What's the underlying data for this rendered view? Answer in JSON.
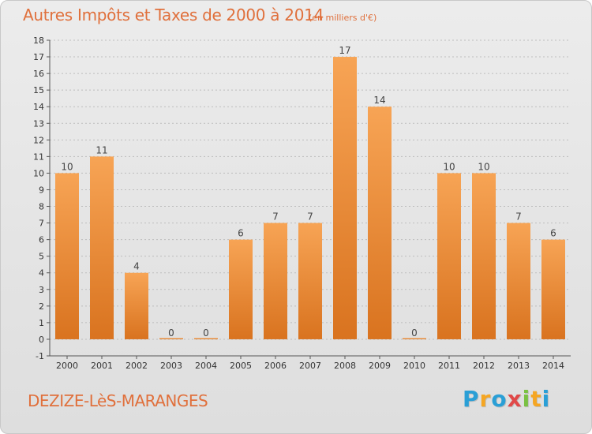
{
  "header": {
    "title": "Autres Impôts et Taxes de 2000 à 2014",
    "unit": "(en milliers d'€)"
  },
  "footer": {
    "commune": "DEZIZE-LèS-MARANGES",
    "logo_letters": [
      "P",
      "r",
      "o",
      "x",
      "i",
      "t",
      "i"
    ],
    "logo_colors": [
      "#2a9fd6",
      "#f5a623",
      "#2a9fd6",
      "#e04848",
      "#7ac143",
      "#f5a623",
      "#2a9fd6"
    ]
  },
  "colors": {
    "bar_top": "#f7a455",
    "bar_bottom": "#d9731f",
    "grid": "#bdbdbd",
    "axis_text": "#333333",
    "title": "#e0703c"
  },
  "chart_data": {
    "type": "bar",
    "title": "Autres Impôts et Taxes de 2000 à 2014",
    "subtitle": "(en milliers d'€)",
    "xlabel": "",
    "ylabel": "",
    "categories": [
      "2000",
      "2001",
      "2002",
      "2003",
      "2004",
      "2005",
      "2006",
      "2007",
      "2008",
      "2009",
      "2010",
      "2011",
      "2012",
      "2013",
      "2014"
    ],
    "values": [
      10,
      11,
      4,
      0,
      0,
      6,
      7,
      7,
      17,
      14,
      0,
      10,
      10,
      7,
      6
    ],
    "data_labels": [
      "10",
      "11",
      "4",
      "0",
      "0",
      "6",
      "7",
      "7",
      "17",
      "14",
      "0",
      "10",
      "10",
      "7",
      "6"
    ],
    "ylim": [
      -1,
      18
    ],
    "yticks": [
      -1,
      0,
      1,
      2,
      3,
      4,
      5,
      6,
      7,
      8,
      9,
      10,
      11,
      12,
      13,
      14,
      15,
      16,
      17,
      18
    ],
    "grid": true
  }
}
